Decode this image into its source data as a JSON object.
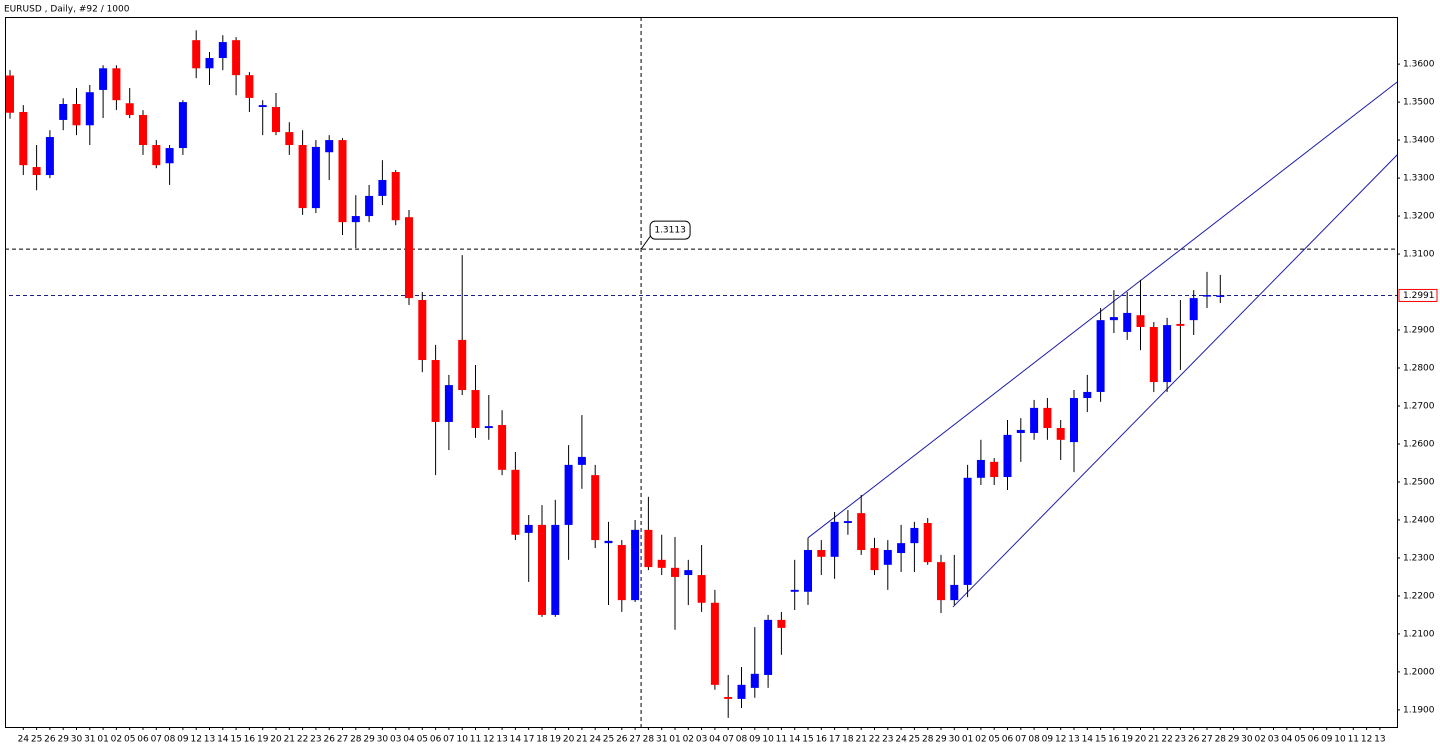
{
  "chart_data": {
    "type": "candlestick",
    "title": "EURUSD , Daily, #92 / 1000",
    "open": [
      1.357,
      1.3474,
      1.3329,
      1.3308,
      1.3453,
      1.3495,
      1.3439,
      1.3532,
      1.3589,
      1.3497,
      1.3466,
      1.3387,
      1.3339,
      1.3379,
      1.3663,
      1.3589,
      1.3616,
      1.3663,
      1.3571,
      1.3487,
      1.3487,
      1.3421,
      1.3387,
      1.3221,
      1.3368,
      1.34,
      1.3184,
      1.32,
      1.3253,
      1.3316,
      1.3197,
      1.2979,
      1.2821,
      1.2658,
      1.2874,
      1.2742,
      1.2642,
      1.265,
      1.2532,
      1.2366,
      1.2387,
      1.215,
      1.2387,
      1.2545,
      1.2518,
      1.2339,
      1.2334,
      1.2189,
      1.2374,
      1.2295,
      1.2274,
      1.2255,
      1.2255,
      1.2182,
      1.1934,
      1.1929,
      1.1958,
      1.1992,
      1.2137,
      1.2211,
      1.2211,
      1.2321,
      1.2303,
      1.2392,
      1.2418,
      1.2326,
      1.2282,
      1.2313,
      1.2339,
      1.2392,
      1.2289,
      1.2189,
      1.2229,
      1.2511,
      1.2553,
      1.2513,
      1.2629,
      1.2629,
      1.2695,
      1.2642,
      1.2605,
      1.2721,
      1.2737,
      1.2926,
      1.2895,
      1.2939,
      1.2908,
      1.2763,
      1.2916,
      1.2926,
      1.2989,
      1.2991
    ],
    "high": [
      1.3584,
      1.3492,
      1.3387,
      1.3426,
      1.351,
      1.3537,
      1.3545,
      1.3597,
      1.3597,
      1.3537,
      1.3479,
      1.34,
      1.3387,
      1.3505,
      1.3689,
      1.3632,
      1.3676,
      1.3671,
      1.3579,
      1.3505,
      1.3524,
      1.3447,
      1.3426,
      1.34,
      1.3413,
      1.3405,
      1.3255,
      1.3282,
      1.3347,
      1.3321,
      1.3216,
      1.3,
      1.2861,
      1.2782,
      1.3097,
      1.2808,
      1.2729,
      1.2689,
      1.2579,
      1.2413,
      1.2439,
      1.2453,
      1.2597,
      1.2676,
      1.2545,
      1.2395,
      1.2347,
      1.24,
      1.2461,
      1.2361,
      1.2355,
      1.2295,
      1.2334,
      1.2216,
      1.1992,
      1.2013,
      1.2118,
      1.215,
      1.2158,
      1.2295,
      1.2353,
      1.2347,
      1.2421,
      1.2426,
      1.2466,
      1.2353,
      1.2347,
      1.2387,
      1.2395,
      1.2405,
      1.2308,
      1.2308,
      1.2545,
      1.2611,
      1.2563,
      1.2663,
      1.2668,
      1.2716,
      1.2721,
      1.2663,
      1.2742,
      1.2782,
      1.2958,
      1.3005,
      1.3,
      1.3032,
      1.2921,
      1.2932,
      1.2979,
      1.3005,
      1.3053,
      1.3045
    ],
    "low": [
      1.3456,
      1.3308,
      1.3268,
      1.33,
      1.3426,
      1.3413,
      1.3387,
      1.3458,
      1.3479,
      1.3458,
      1.3361,
      1.3326,
      1.3282,
      1.3361,
      1.3563,
      1.3545,
      1.3584,
      1.3518,
      1.3474,
      1.3413,
      1.3413,
      1.3361,
      1.3203,
      1.3208,
      1.3295,
      1.315,
      1.3116,
      1.3184,
      1.3229,
      1.3176,
      1.2966,
      1.2789,
      1.2518,
      1.2584,
      1.2729,
      1.2616,
      1.2611,
      1.2518,
      1.2347,
      1.2237,
      1.2145,
      1.2145,
      1.2295,
      1.2482,
      1.2326,
      1.2176,
      1.2158,
      1.2184,
      1.2268,
      1.2255,
      1.2111,
      1.2176,
      1.2158,
      1.1953,
      1.1879,
      1.1905,
      1.1932,
      1.1958,
      1.2045,
      1.2163,
      1.2176,
      1.2255,
      1.2245,
      1.2361,
      1.2308,
      1.2255,
      1.2216,
      1.2263,
      1.2263,
      1.2282,
      1.2155,
      1.2176,
      1.2197,
      1.2492,
      1.2492,
      1.2479,
      1.2553,
      1.2611,
      1.2611,
      1.2558,
      1.2526,
      1.2684,
      1.2711,
      1.2892,
      1.2874,
      1.2847,
      1.2737,
      1.2737,
      1.2795,
      1.2887,
      1.2958,
      1.2971
    ],
    "close": [
      1.3472,
      1.3334,
      1.3308,
      1.3408,
      1.3495,
      1.3439,
      1.3526,
      1.3589,
      1.3505,
      1.3466,
      1.3387,
      1.3334,
      1.3379,
      1.35,
      1.3589,
      1.3616,
      1.3658,
      1.3571,
      1.3511,
      1.3492,
      1.3421,
      1.3387,
      1.3221,
      1.3382,
      1.34,
      1.3184,
      1.32,
      1.3253,
      1.3295,
      1.3189,
      1.2984,
      1.2821,
      1.2658,
      1.2755,
      1.2742,
      1.2642,
      1.2647,
      1.2532,
      1.2361,
      1.2387,
      1.215,
      1.2387,
      1.2545,
      1.2566,
      1.2347,
      1.2345,
      1.2189,
      1.2374,
      1.2276,
      1.2274,
      1.225,
      1.2268,
      1.2182,
      1.1966,
      1.1929,
      1.1966,
      1.1995,
      1.2137,
      1.2116,
      1.2216,
      1.2321,
      1.2303,
      1.2395,
      1.2397,
      1.2321,
      1.2268,
      1.2321,
      1.2339,
      1.2379,
      1.2289,
      1.2189,
      1.2229,
      1.2511,
      1.2558,
      1.2513,
      1.2624,
      1.2637,
      1.2695,
      1.2642,
      1.2611,
      1.2721,
      1.2737,
      1.2926,
      1.2934,
      1.2945,
      1.2908,
      1.2763,
      1.2913,
      1.2911,
      1.2984,
      1.2992,
      1.2991
    ],
    "up_color": "#0000ff",
    "down_color": "#ff0000",
    "x_labels": [
      "24",
      "25",
      "26",
      "29",
      "30",
      "31",
      "01",
      "02",
      "05",
      "06",
      "07",
      "08",
      "09",
      "12",
      "13",
      "14",
      "15",
      "16",
      "19",
      "20",
      "21",
      "22",
      "23",
      "26",
      "27",
      "28",
      "29",
      "30",
      "03",
      "04",
      "05",
      "06",
      "07",
      "10",
      "11",
      "12",
      "13",
      "14",
      "17",
      "18",
      "19",
      "20",
      "21",
      "24",
      "25",
      "26",
      "27",
      "28",
      "31",
      "01",
      "02",
      "03",
      "04",
      "07",
      "08",
      "09",
      "10",
      "11",
      "14",
      "15",
      "16",
      "17",
      "18",
      "21",
      "22",
      "23",
      "24",
      "25",
      "28",
      "29",
      "30",
      "01",
      "02",
      "05",
      "06",
      "07",
      "08",
      "09",
      "12",
      "13",
      "14",
      "15",
      "16",
      "19",
      "20",
      "21",
      "22",
      "23",
      "26",
      "27",
      "28",
      "29",
      "30",
      "02",
      "03",
      "04",
      "05",
      "06",
      "09",
      "10",
      "11",
      "12",
      "13"
    ],
    "ylim": [
      1.1855,
      1.3724
    ],
    "yticks": [
      {
        "value": 1.36,
        "label": "1.3600"
      },
      {
        "value": 1.35,
        "label": "1.3500"
      },
      {
        "value": 1.34,
        "label": "1.3400"
      },
      {
        "value": 1.33,
        "label": "1.3300"
      },
      {
        "value": 1.32,
        "label": "1.3200"
      },
      {
        "value": 1.31,
        "label": "1.3100"
      },
      {
        "value": 1.29,
        "label": "1.2900"
      },
      {
        "value": 1.28,
        "label": "1.2800"
      },
      {
        "value": 1.27,
        "label": "1.2700"
      },
      {
        "value": 1.26,
        "label": "1.2600"
      },
      {
        "value": 1.25,
        "label": "1.2500"
      },
      {
        "value": 1.24,
        "label": "1.2400"
      },
      {
        "value": 1.23,
        "label": "1.2300"
      },
      {
        "value": 1.22,
        "label": "1.2200"
      },
      {
        "value": 1.21,
        "label": "1.2100"
      },
      {
        "value": 1.2,
        "label": "1.2000"
      },
      {
        "value": 1.19,
        "label": "1.1900"
      }
    ],
    "trendlines": [
      {
        "x": [
          60,
          104.3
        ],
        "y": [
          1.2353,
          1.3553
        ],
        "color": "#1c1ca8"
      },
      {
        "x": [
          70.9,
          104.3
        ],
        "y": [
          1.2171,
          1.3361
        ],
        "color": "#1c1ca8"
      }
    ],
    "crosshair": {
      "x": 47.45,
      "y": 1.3113
    },
    "current_price": 1.2991
  }
}
